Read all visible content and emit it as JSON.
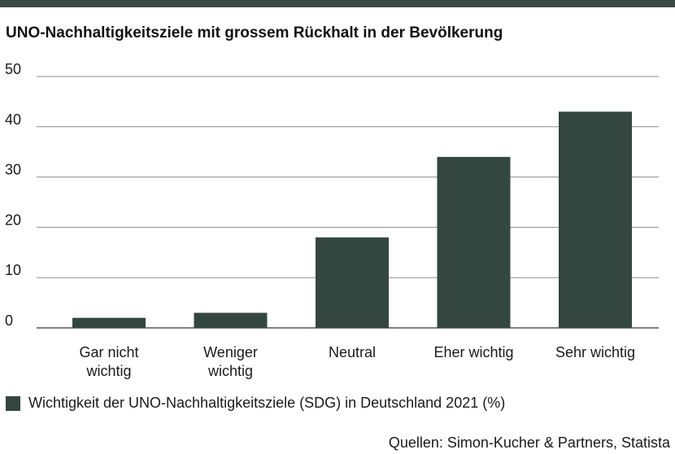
{
  "header": {
    "title": "UNO-Nachhaltigkeitsziele mit grossem Rückhalt in der Bevölkerung"
  },
  "legend": {
    "label": "Wichtigkeit der UNO-Nachhaltigkeitsziele (SDG) in Deutschland 2021 (%)"
  },
  "source": {
    "text": "Quellen: Simon-Kucher & Partners, Statista"
  },
  "colors": {
    "bar": "#344640",
    "rule": "#3a4a44",
    "grid": "#8c8c8c"
  },
  "chart_data": {
    "type": "bar",
    "title": "UNO-Nachhaltigkeitsziele mit grossem Rückhalt in der Bevölkerung",
    "categories": [
      [
        "Gar nicht",
        "wichtig"
      ],
      [
        "Weniger",
        "wichtig"
      ],
      [
        "Neutral"
      ],
      [
        "Eher wichtig"
      ],
      [
        "Sehr wichtig"
      ]
    ],
    "series": [
      {
        "name": "Wichtigkeit der UNO-Nachhaltigkeitsziele (SDG) in Deutschland 2021 (%)",
        "values": [
          2,
          3,
          18,
          34,
          43
        ]
      }
    ],
    "ylim": [
      0,
      50
    ],
    "yticks": [
      0,
      10,
      20,
      30,
      40,
      50
    ],
    "grid": true,
    "legend_position": "bottom-left",
    "xlabel": "",
    "ylabel": ""
  }
}
